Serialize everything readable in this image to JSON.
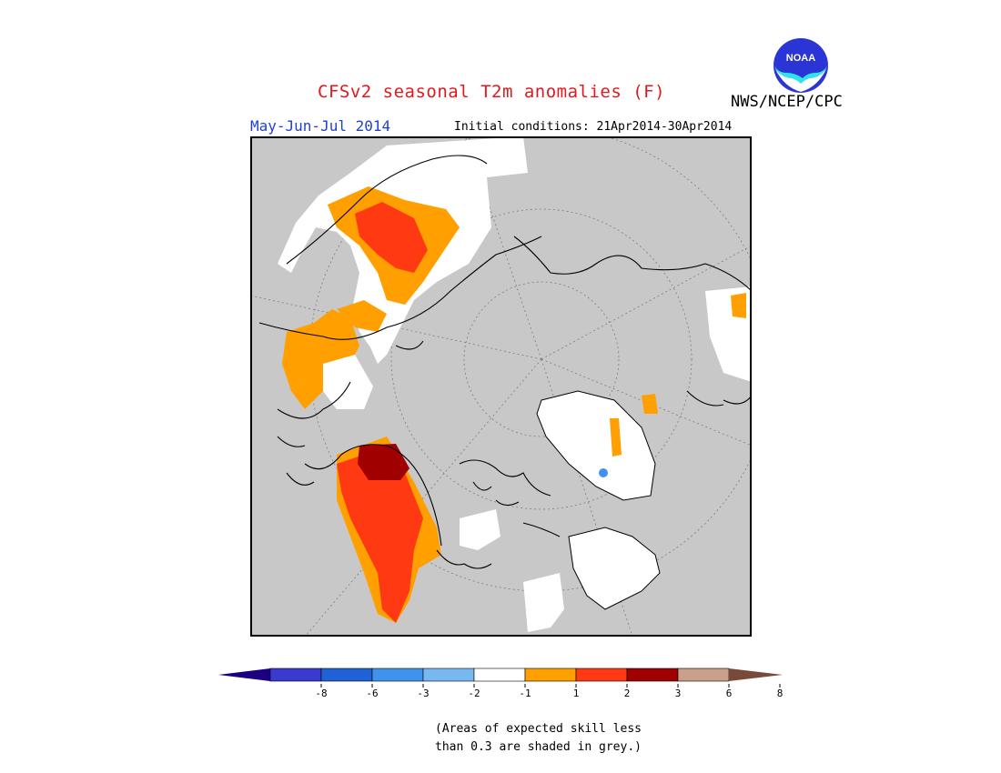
{
  "header": {
    "title": "CFSv2 seasonal T2m anomalies (F)",
    "organization": "NWS/NCEP/CPC",
    "period": "May-Jun-Jul 2014",
    "initial_conditions": "Initial conditions: 21Apr2014-30Apr2014",
    "logo": {
      "icon": "noaa-logo-icon",
      "text": "NOAA"
    }
  },
  "map": {
    "projection": "north-polar-stereographic",
    "background_color": "#c8c8c8",
    "coastline_color": "#000000",
    "graticule_color": "#8a8a8a"
  },
  "legend": {
    "colors": [
      "#1a0080",
      "#3a3ad0",
      "#1f62d8",
      "#3f93ee",
      "#78b8f0",
      "#ffffff",
      "#ff9f00",
      "#ff3a12",
      "#a00000",
      "#c9a08a",
      "#7a4a38"
    ],
    "ticks": [
      "-8",
      "-6",
      "-3",
      "-2",
      "-1",
      "1",
      "2",
      "3",
      "6",
      "8"
    ]
  },
  "note": {
    "line1": "(Areas of expected skill less",
    "line2": "than 0.3 are shaded in grey.)"
  }
}
